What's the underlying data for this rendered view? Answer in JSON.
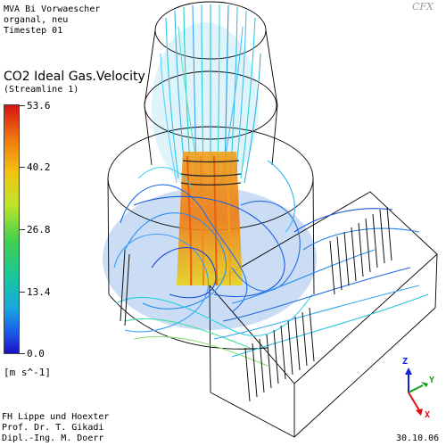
{
  "header": {
    "line1": "MVA Bi Vorwaescher",
    "line2": "organal, neu",
    "line3": "Timestep 01"
  },
  "logo_text": "CFX",
  "variable": {
    "title": "CO2 Ideal Gas.Velocity",
    "subtitle": "(Streamline 1)",
    "unit": "[m s^-1]"
  },
  "colorbar": {
    "ticks": [
      "53.6",
      "40.2",
      "26.8",
      "13.4",
      "0.0"
    ],
    "max": 53.6,
    "min": 0.0
  },
  "footer": {
    "line1": "FH Lippe und Hoexter",
    "line2": "Prof. Dr. T. Gikadi",
    "line3": "Dipl.-Ing. M. Doerr",
    "date": "30.10.06"
  },
  "axes": {
    "x": "X",
    "y": "Y",
    "z": "Z",
    "x_color": "#e01010",
    "y_color": "#10a010",
    "z_color": "#1020e0"
  }
}
